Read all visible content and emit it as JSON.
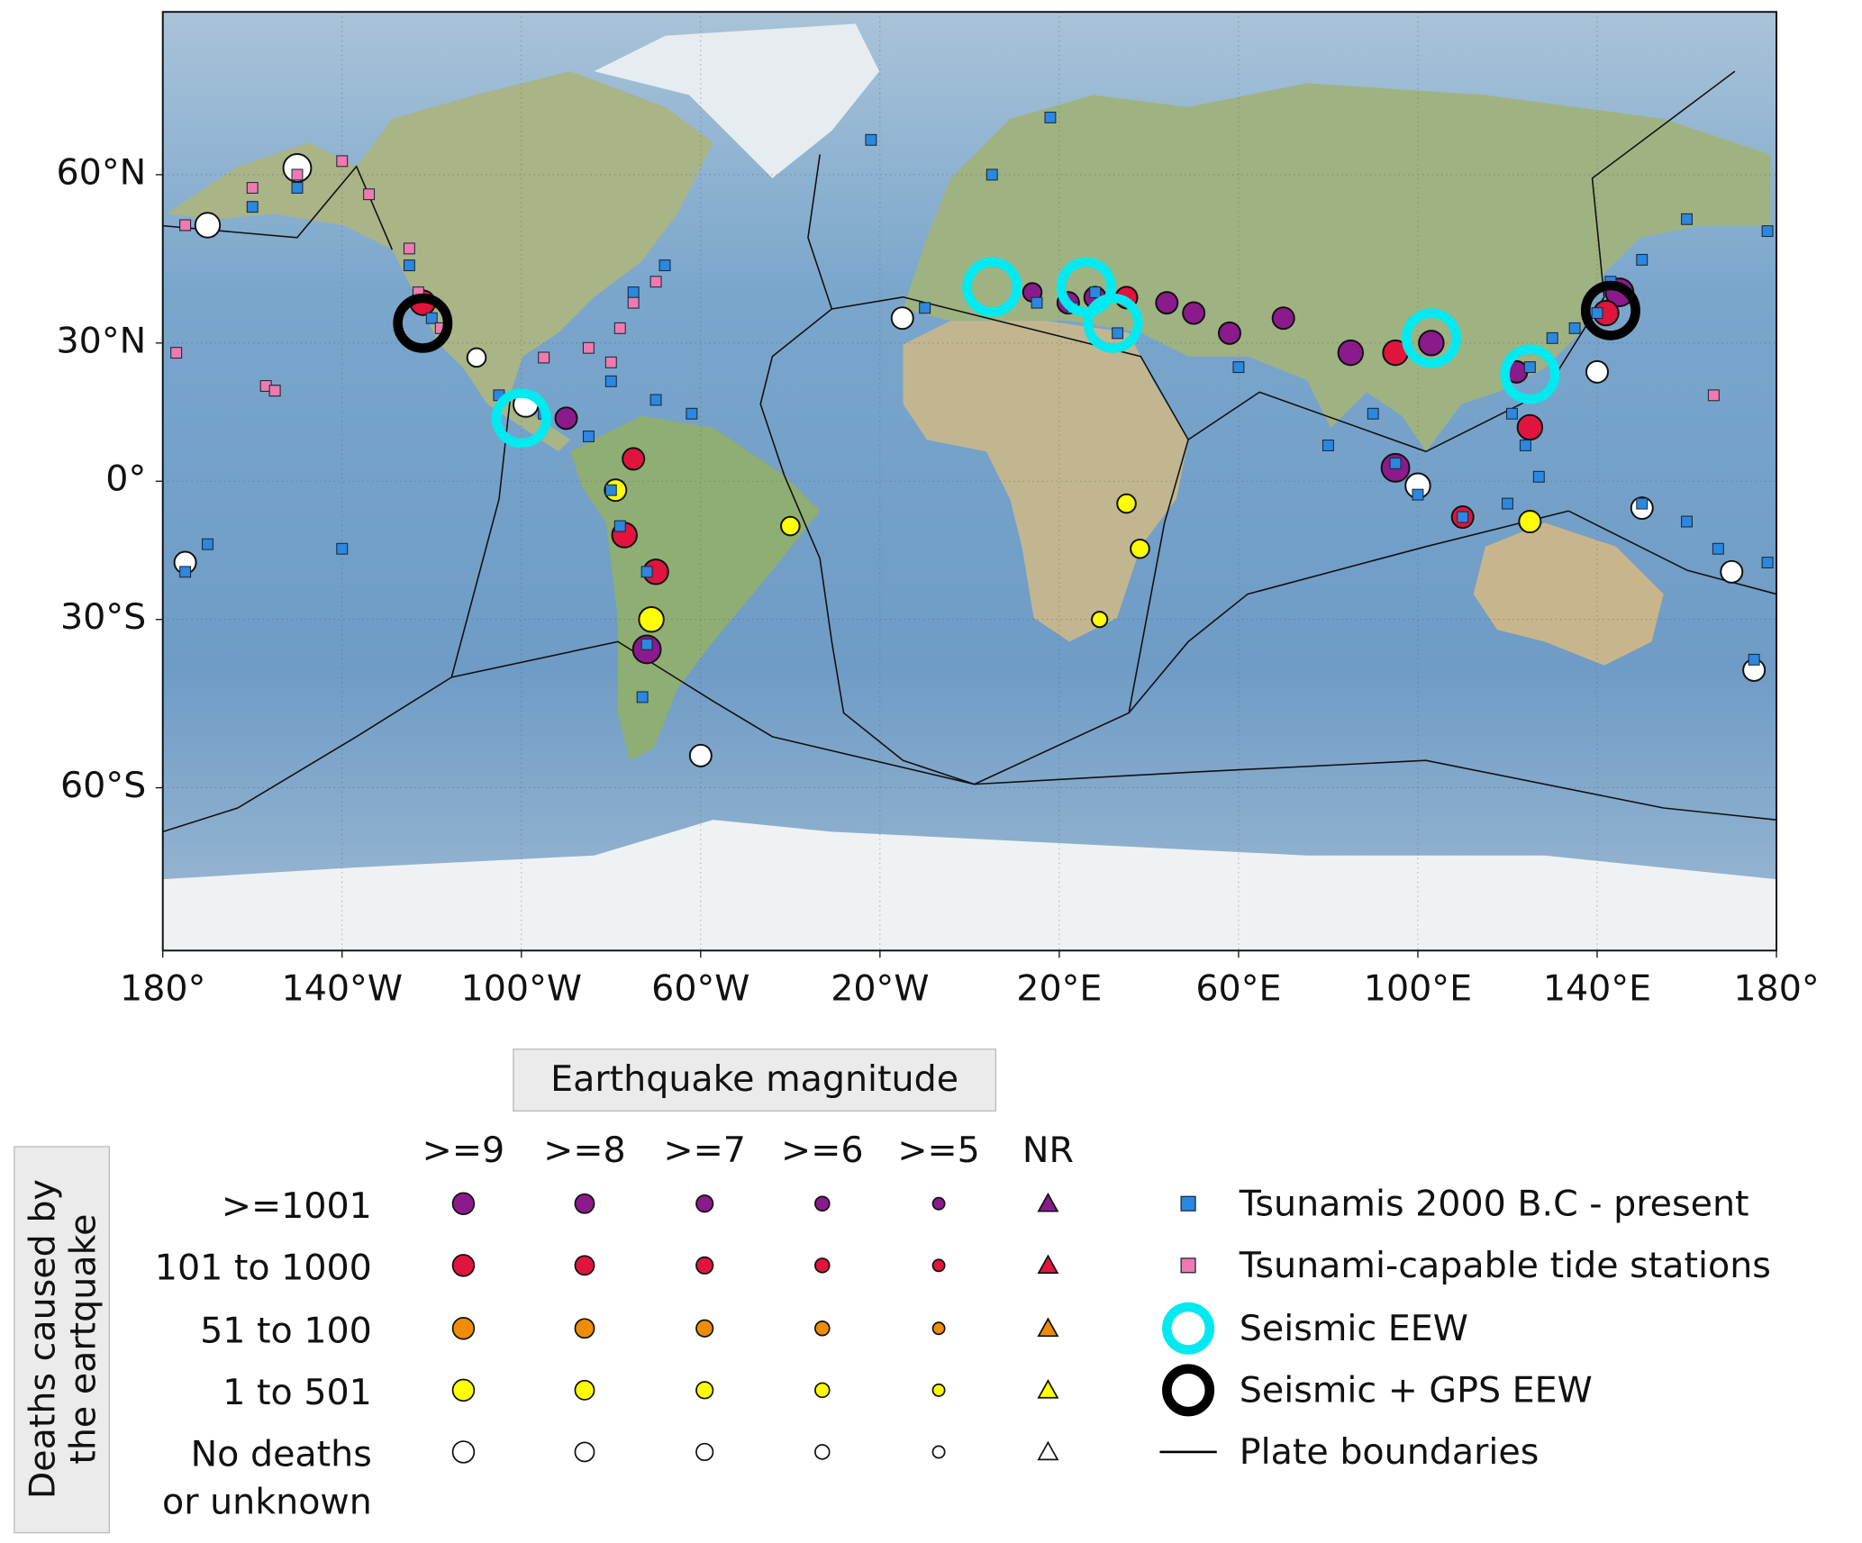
{
  "chart_data": {
    "type": "map",
    "projection": "miller",
    "xlim": [
      -180,
      180
    ],
    "ylim": [
      -80,
      80
    ],
    "grid": true,
    "xticks": [
      {
        "value": -180,
        "label": "180°"
      },
      {
        "value": -140,
        "label": "140°W"
      },
      {
        "value": -100,
        "label": "100°W"
      },
      {
        "value": -60,
        "label": "60°W"
      },
      {
        "value": -20,
        "label": "20°W"
      },
      {
        "value": 20,
        "label": "20°E"
      },
      {
        "value": 60,
        "label": "60°E"
      },
      {
        "value": 100,
        "label": "100°E"
      },
      {
        "value": 140,
        "label": "140°E"
      },
      {
        "value": 180,
        "label": "180°"
      }
    ],
    "yticks": [
      {
        "value": 60,
        "label": "60°N"
      },
      {
        "value": 30,
        "label": "30°N"
      },
      {
        "value": 0,
        "label": "0°"
      },
      {
        "value": -30,
        "label": "30°S"
      },
      {
        "value": -60,
        "label": "60°S"
      }
    ],
    "earthquakes": {
      "lon": [
        -72,
        -71,
        -70,
        -77,
        -79,
        -75,
        -90,
        -99,
        -110,
        -122,
        -150,
        -170,
        145,
        142,
        140,
        125,
        122,
        103,
        95,
        85,
        70,
        58,
        50,
        44,
        35,
        28,
        22,
        14,
        100,
        95,
        110,
        125,
        150,
        170,
        175,
        -175,
        35,
        38,
        29,
        -40,
        -60,
        -15
      ],
      "lat": [
        -36,
        -30,
        -20,
        -12,
        -2,
        5,
        14,
        17,
        27,
        38,
        61,
        52,
        40,
        36,
        24,
        12,
        24,
        30,
        28,
        28,
        35,
        32,
        36,
        38,
        39,
        39,
        38,
        40,
        -1,
        3,
        -8,
        -9,
        -6,
        -20,
        -40,
        -18,
        -5,
        -15,
        -30,
        -10,
        -55,
        35
      ],
      "magnitude": [
        9,
        8,
        8,
        8,
        7,
        7,
        7,
        8,
        6,
        8,
        9,
        8,
        9,
        8,
        7,
        8,
        7,
        8,
        8,
        8,
        7,
        7,
        7,
        7,
        7,
        7,
        7,
        6,
        8,
        9,
        7,
        7,
        7,
        7,
        7,
        7,
        6,
        6,
        5,
        6,
        7,
        7
      ],
      "color": [
        "#8b1a8c",
        "#ffff00",
        "#e0143c",
        "#e0143c",
        "#ffff00",
        "#e0143c",
        "#8b1a8c",
        "#ffffff",
        "#ffffff",
        "#e0143c",
        "#ffffff",
        "#ffffff",
        "#8b1a8c",
        "#e0143c",
        "#ffffff",
        "#e0143c",
        "#8b1a8c",
        "#8b1a8c",
        "#e0143c",
        "#8b1a8c",
        "#8b1a8c",
        "#8b1a8c",
        "#8b1a8c",
        "#8b1a8c",
        "#e0143c",
        "#8b1a8c",
        "#8b1a8c",
        "#8b1a8c",
        "#ffffff",
        "#8b1a8c",
        "#e0143c",
        "#ffff00",
        "#ffffff",
        "#ffffff",
        "#ffffff",
        "#ffffff",
        "#ffff00",
        "#ffff00",
        "#ffff00",
        "#ffff00",
        "#ffffff",
        "#ffffff"
      ]
    },
    "tsunamis": {
      "lon": [
        -150,
        -160,
        -175,
        178,
        160,
        150,
        143,
        140,
        135,
        130,
        125,
        121,
        124,
        127,
        120,
        110,
        100,
        95,
        150,
        160,
        167,
        178,
        -175,
        175,
        -80,
        -78,
        -72,
        -72,
        -73,
        -85,
        -95,
        -105,
        -120,
        -125,
        -62,
        -70,
        -80,
        -75,
        -68,
        15,
        23,
        28,
        -10,
        5,
        18,
        -22,
        90,
        80,
        60,
        33,
        -170,
        -155,
        -140
      ],
      "lat": [
        58,
        55,
        52,
        51,
        53,
        46,
        42,
        36,
        33,
        31,
        25,
        15,
        8,
        1,
        -5,
        -8,
        -3,
        4,
        -5,
        -9,
        -15,
        -18,
        -20,
        -38,
        -2,
        -10,
        -20,
        -35,
        -45,
        10,
        15,
        19,
        35,
        45,
        15,
        18,
        22,
        40,
        45,
        38,
        37,
        40,
        37,
        60,
        68,
        65,
        15,
        8,
        25,
        32,
        -14,
        20,
        -15
      ]
    },
    "tide_stations": {
      "lon": [
        -125,
        -123,
        -118,
        -95,
        -85,
        -80,
        -78,
        -75,
        -70,
        -150,
        -160,
        -175,
        -157,
        -155,
        -140,
        -134,
        -177,
        166
      ],
      "lat": [
        48,
        40,
        33,
        27,
        29,
        26,
        33,
        38,
        42,
        60,
        58,
        52,
        21,
        20,
        62,
        57,
        28,
        19
      ]
    },
    "seismic_eew": {
      "lon": [
        5,
        26,
        32,
        -100,
        103,
        125
      ],
      "lat": [
        41,
        41,
        34,
        14,
        31,
        23.5
      ]
    },
    "seismic_gps_eew": {
      "lon": [
        -122,
        143
      ],
      "lat": [
        34,
        36.5
      ]
    },
    "legend": {
      "title": "Earthquake magnitude",
      "deaths_title": [
        "Deaths caused by",
        "the eartquake"
      ],
      "columns": [
        {
          "label": ">=9",
          "marker": "circle"
        },
        {
          "label": ">=8",
          "marker": "circle"
        },
        {
          "label": ">=7",
          "marker": "circle"
        },
        {
          "label": ">=6",
          "marker": "circle"
        },
        {
          "label": ">=5",
          "marker": "circle"
        },
        {
          "label": "NR",
          "marker": "triangle"
        }
      ],
      "rows": [
        {
          "label": [
            ">=1001"
          ],
          "color": "#8b1a8c"
        },
        {
          "label": [
            "101 to 1000"
          ],
          "color": "#e0143c"
        },
        {
          "label": [
            "51 to 100"
          ],
          "color": "#f08c00"
        },
        {
          "label": [
            "1 to 501"
          ],
          "color": "#ffff00"
        },
        {
          "label": [
            "No deaths",
            "or unknown"
          ],
          "color": "#ffffff"
        }
      ],
      "items": [
        {
          "label": "Tsunamis 2000 B.C - present",
          "marker": "square",
          "color": "#2b87e0"
        },
        {
          "label": "Tsunami-capable tide stations",
          "marker": "square",
          "color": "#f07ab0"
        },
        {
          "label": "Seismic EEW",
          "marker": "ring",
          "color": "#00eaf0"
        },
        {
          "label": "Seismic + GPS EEW",
          "marker": "ring",
          "color": "#000000"
        },
        {
          "label": "Plate boundaries",
          "marker": "line",
          "color": "#000000"
        }
      ]
    }
  }
}
